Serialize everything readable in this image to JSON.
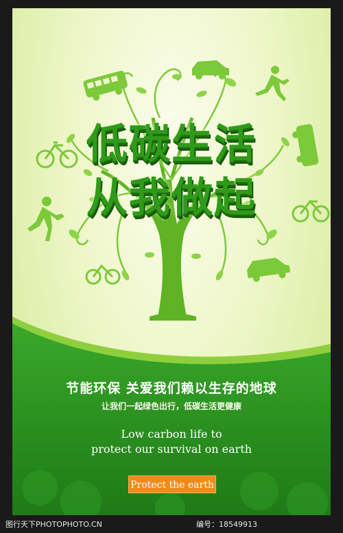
{
  "poster": {
    "headline_line1": "低碳生活",
    "headline_line2": "从我做起",
    "cn_main": "节能环保 关爱我们赖以生存的地球",
    "cn_sub": "让我们一起绿色出行，低碳生活更健康",
    "en_line1": "Low carbon life to",
    "en_line2": "protect our survival on earth",
    "button_label": "Protect the earth"
  },
  "footer": {
    "site": "图行天下PHOTOPHOTO.CN",
    "id_text": "编号：18549913"
  },
  "icons": [
    "tree-icon",
    "bus-icon",
    "car-icon",
    "runner-icon",
    "bicycle-icon",
    "leaf-icon"
  ],
  "colors": {
    "headline_green": "#2f9a1a",
    "band_green": "#2e9a22",
    "button_orange": "#f08a1a",
    "frame": "#1a1a1a"
  }
}
